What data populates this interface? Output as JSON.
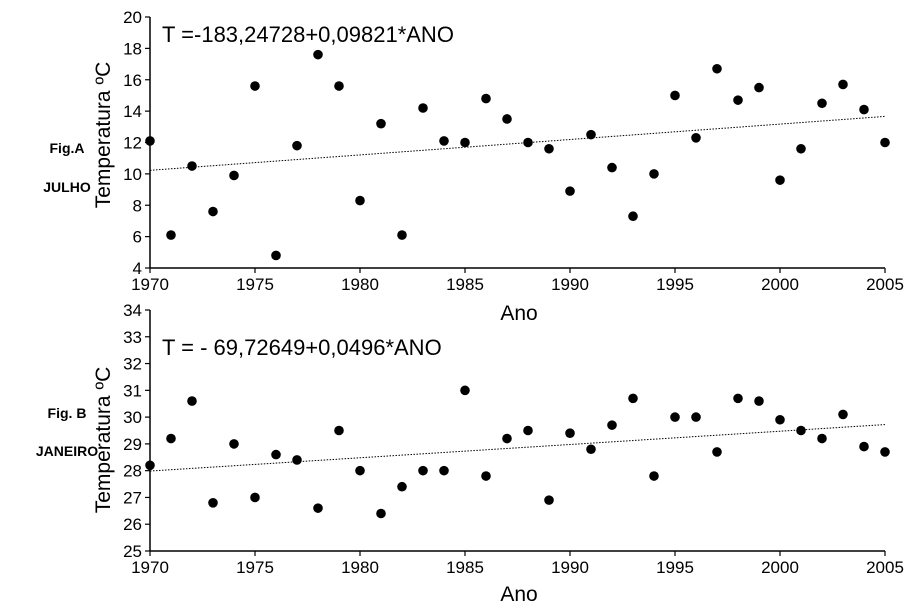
{
  "chart_data": [
    {
      "type": "scatter",
      "side_labels": [
        "Fig.A",
        "JULHO"
      ],
      "equation": "T =-183,24728+0,09821*ANO",
      "xlabel": "Ano",
      "ylabel": "Temperatura ºC",
      "xlim": [
        1970,
        2005
      ],
      "ylim": [
        4,
        20
      ],
      "xticks": [
        "1970",
        "1975",
        "1980",
        "1985",
        "1990",
        "1995",
        "2000",
        "2005"
      ],
      "yticks": [
        "4",
        "6",
        "8",
        "10",
        "12",
        "14",
        "16",
        "18",
        "20"
      ],
      "trendline": {
        "intercept": -183.24728,
        "slope": 0.09821
      },
      "x": [
        1970,
        1971,
        1972,
        1973,
        1974,
        1975,
        1976,
        1977,
        1978,
        1979,
        1980,
        1981,
        1982,
        1983,
        1984,
        1985,
        1986,
        1987,
        1988,
        1989,
        1990,
        1991,
        1992,
        1993,
        1994,
        1995,
        1996,
        1997,
        1998,
        1999,
        2000,
        2001,
        2002,
        2003,
        2004,
        2005
      ],
      "y": [
        12.1,
        6.1,
        10.5,
        7.6,
        9.9,
        15.6,
        4.8,
        11.8,
        17.6,
        15.6,
        8.3,
        13.2,
        6.1,
        14.2,
        12.1,
        12.0,
        14.8,
        13.5,
        12.0,
        11.6,
        8.9,
        12.5,
        10.4,
        7.3,
        10.0,
        15.0,
        12.3,
        16.7,
        14.7,
        15.5,
        9.6,
        11.6,
        14.5,
        15.7,
        14.1,
        12.0
      ]
    },
    {
      "type": "scatter",
      "side_labels": [
        "Fig. B",
        "JANEIRO"
      ],
      "equation": "T = - 69,72649+0,0496*ANO",
      "xlabel": "Ano",
      "ylabel": "Temperatura ºC",
      "xlim": [
        1970,
        2005
      ],
      "ylim": [
        25,
        34
      ],
      "xticks": [
        "1970",
        "1975",
        "1980",
        "1985",
        "1990",
        "1995",
        "2000",
        "2005"
      ],
      "yticks": [
        "25",
        "26",
        "27",
        "28",
        "29",
        "30",
        "31",
        "32",
        "33",
        "34"
      ],
      "trendline": {
        "intercept": -69.72649,
        "slope": 0.0496
      },
      "x": [
        1970,
        1971,
        1972,
        1973,
        1974,
        1975,
        1976,
        1977,
        1978,
        1979,
        1980,
        1981,
        1982,
        1983,
        1984,
        1985,
        1986,
        1987,
        1988,
        1989,
        1990,
        1991,
        1992,
        1993,
        1994,
        1995,
        1996,
        1997,
        1998,
        1999,
        2000,
        2001,
        2002,
        2003,
        2004,
        2005
      ],
      "y": [
        28.2,
        29.2,
        30.6,
        26.8,
        29.0,
        27.0,
        28.6,
        28.4,
        26.6,
        29.5,
        28.0,
        26.4,
        27.4,
        28.0,
        28.0,
        31.0,
        27.8,
        29.2,
        29.5,
        26.9,
        29.4,
        28.8,
        29.7,
        30.7,
        27.8,
        30.0,
        30.0,
        28.7,
        30.7,
        30.6,
        29.9,
        29.5,
        29.2,
        30.1,
        28.9,
        28.7
      ]
    }
  ]
}
